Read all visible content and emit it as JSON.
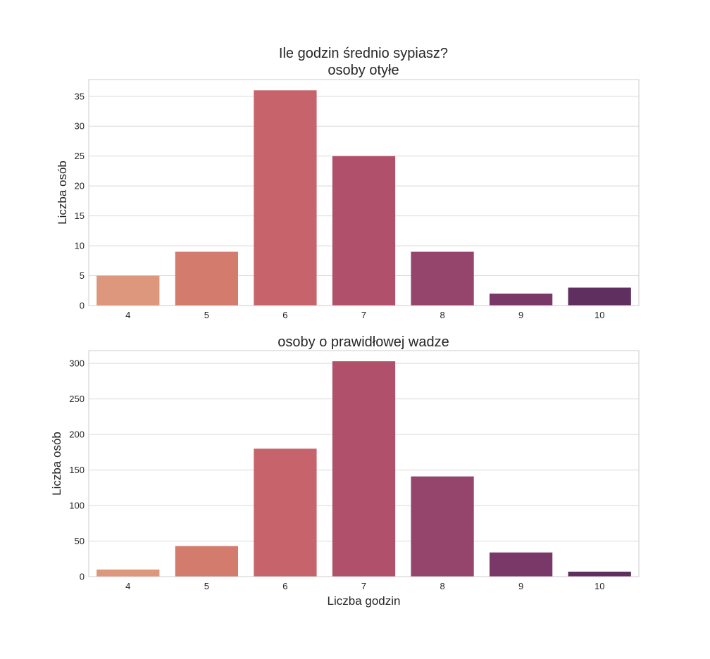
{
  "figure": {
    "suptitle": "Ile godzin średnio sypiasz?"
  },
  "chart_data": [
    {
      "type": "bar",
      "title": "osoby otyłe",
      "xlabel": "",
      "ylabel": "Liczba osób",
      "categories": [
        "4",
        "5",
        "6",
        "7",
        "8",
        "9",
        "10"
      ],
      "values": [
        5,
        9,
        36,
        25,
        9,
        2,
        3
      ],
      "ylim": [
        0,
        37.8
      ],
      "yticks": [
        0,
        5,
        10,
        15,
        20,
        25,
        30,
        35
      ],
      "colors": [
        "#dc977d",
        "#d37b6c",
        "#c7636b",
        "#b0506a",
        "#95446c",
        "#7a3868",
        "#5f2f60"
      ],
      "grid": true
    },
    {
      "type": "bar",
      "title": "osoby o prawidłowej wadze",
      "xlabel": "Liczba godzin",
      "ylabel": "Liczba osób",
      "categories": [
        "4",
        "5",
        "6",
        "7",
        "8",
        "9",
        "10"
      ],
      "values": [
        10,
        43,
        180,
        303,
        141,
        34,
        7
      ],
      "ylim": [
        0,
        318
      ],
      "yticks": [
        0,
        50,
        100,
        150,
        200,
        250,
        300
      ],
      "colors": [
        "#dc977d",
        "#d37b6c",
        "#c7636b",
        "#b0506a",
        "#95446c",
        "#7a3868",
        "#5f2f60"
      ],
      "grid": true
    }
  ]
}
